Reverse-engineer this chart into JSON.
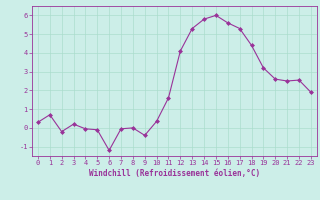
{
  "x": [
    0,
    1,
    2,
    3,
    4,
    5,
    6,
    7,
    8,
    9,
    10,
    11,
    12,
    13,
    14,
    15,
    16,
    17,
    18,
    19,
    20,
    21,
    22,
    23
  ],
  "y": [
    0.3,
    0.7,
    -0.2,
    0.2,
    -0.05,
    -0.1,
    -1.2,
    -0.05,
    0.0,
    -0.4,
    0.35,
    1.6,
    4.1,
    5.3,
    5.8,
    6.0,
    5.6,
    5.3,
    4.4,
    3.2,
    2.6,
    2.5,
    2.55,
    1.9
  ],
  "line_color": "#993399",
  "marker": "D",
  "markersize": 2.0,
  "linewidth": 0.8,
  "bg_color": "#cceee8",
  "grid_color": "#aaddcc",
  "xlabel": "Windchill (Refroidissement éolien,°C)",
  "xlabel_color": "#993399",
  "tick_color": "#993399",
  "spine_color": "#993399",
  "ylim": [
    -1.5,
    6.5
  ],
  "xlim": [
    -0.5,
    23.5
  ],
  "yticks": [
    -1,
    0,
    1,
    2,
    3,
    4,
    5,
    6
  ],
  "xticks": [
    0,
    1,
    2,
    3,
    4,
    5,
    6,
    7,
    8,
    9,
    10,
    11,
    12,
    13,
    14,
    15,
    16,
    17,
    18,
    19,
    20,
    21,
    22,
    23
  ],
  "tick_fontsize": 5.0,
  "ylabel_fontsize": 5.5,
  "xlabel_fontsize": 5.5
}
